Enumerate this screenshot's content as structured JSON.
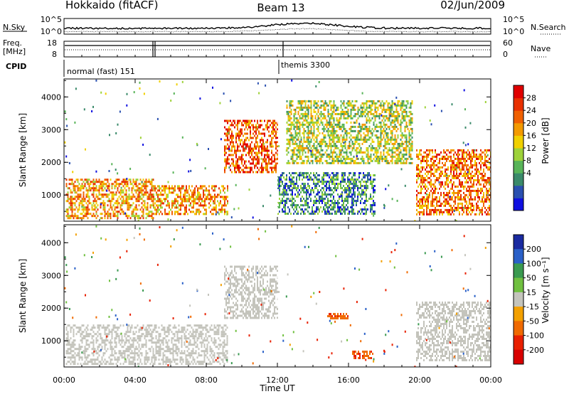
{
  "header": {
    "title_left": "Hokkaido (fitACF)",
    "title_center": "Beam 13",
    "title_right": "02/Jun/2009"
  },
  "noise_panel": {
    "left_label": "N.Sky",
    "right_label": "N.Search",
    "left_ticks": [
      "10^5",
      "10^0"
    ],
    "right_ticks": [
      "10^5",
      "10^0"
    ]
  },
  "freq_panel": {
    "left_label_1": "Freq.",
    "left_label_2": "[MHz]",
    "right_label": "Nave",
    "left_ticks": [
      "18",
      "8"
    ],
    "right_ticks": [
      "60",
      "0"
    ]
  },
  "cpid_panel": {
    "label": "CPID",
    "segments": [
      {
        "text": "normal (fast) 151",
        "start_hour": 0
      },
      {
        "text": "themis 3300",
        "start_hour": 12
      }
    ]
  },
  "time_axis": {
    "label": "Time UT",
    "ticks": [
      "00:00",
      "04:00",
      "08:00",
      "12:00",
      "16:00",
      "20:00",
      "00:00"
    ]
  },
  "power_panel": {
    "ylabel": "Slant Range [km]",
    "yticks": [
      "4000",
      "3000",
      "2000",
      "1000"
    ],
    "colorbar_label": "Power [dB]",
    "colorbar_ticks": [
      "28",
      "24",
      "20",
      "16",
      "12",
      "8",
      "4"
    ],
    "colors": [
      "#1010e0",
      "#2a50b0",
      "#3a8a6a",
      "#58b458",
      "#9ed23a",
      "#f0d000",
      "#f39a00",
      "#f06000",
      "#e83000",
      "#e00000"
    ]
  },
  "velocity_panel": {
    "ylabel": "Slant Range [km]",
    "yticks": [
      "4000",
      "3000",
      "2000",
      "1000"
    ],
    "colorbar_label": "Velocity [m s⁻¹]",
    "colorbar_ticks": [
      "200",
      "100",
      "50",
      "15",
      "-15",
      "-50",
      "-100",
      "-200"
    ],
    "colors": [
      "#1a2aa0",
      "#2a60c8",
      "#3a9a50",
      "#70c040",
      "#c4c4bc",
      "#f3a000",
      "#f06a00",
      "#e82000",
      "#d80000"
    ]
  },
  "chart_data": [
    {
      "type": "heatmap",
      "title": "Hokkaido (fitACF)",
      "xlabel": "Time UT",
      "ylabel": "Slant Range [km]",
      "xlim": [
        0,
        24
      ],
      "ylim": [
        200,
        4550
      ],
      "colorbar": {
        "label": "Power [dB]",
        "range": [
          0,
          30
        ],
        "ticks": [
          4,
          8,
          12,
          16,
          20,
          24,
          28
        ]
      },
      "series": [
        {
          "name": "Power",
          "region": [
            0.1,
            5.0,
            300,
            1500
          ],
          "typical_value": 20
        },
        {
          "name": "Power",
          "region": [
            5.0,
            9.2,
            400,
            1300
          ],
          "typical_value": 20
        },
        {
          "name": "Power",
          "region": [
            9.0,
            12.0,
            1700,
            3300
          ],
          "typical_value": 24
        },
        {
          "name": "Power",
          "region": [
            12.0,
            17.5,
            400,
            1700
          ],
          "typical_value": 8
        },
        {
          "name": "Power",
          "region": [
            12.5,
            19.6,
            2000,
            3900
          ],
          "typical_value": 14
        },
        {
          "name": "Power",
          "region": [
            19.8,
            24.0,
            400,
            2400
          ],
          "typical_value": 22
        }
      ]
    },
    {
      "type": "heatmap",
      "xlabel": "Time UT",
      "ylabel": "Slant Range [km]",
      "xlim": [
        0,
        24
      ],
      "ylim": [
        200,
        4550
      ],
      "colorbar": {
        "label": "Velocity [m s⁻¹]",
        "range": [
          -250,
          250
        ],
        "ticks": [
          200,
          100,
          50,
          15,
          -15,
          -50,
          -100,
          -200
        ]
      },
      "series": [
        {
          "name": "Velocity",
          "region": [
            0.1,
            9.2,
            300,
            1500
          ],
          "typical_value": 0
        },
        {
          "name": "Velocity",
          "region": [
            9.0,
            12.0,
            1700,
            3300
          ],
          "typical_value": 0
        },
        {
          "name": "Velocity",
          "region": [
            14.8,
            16.0,
            1700,
            1850
          ],
          "typical_value": -80
        },
        {
          "name": "Velocity",
          "region": [
            16.2,
            17.4,
            500,
            700
          ],
          "typical_value": -80
        },
        {
          "name": "Velocity",
          "region": [
            19.8,
            24.0,
            400,
            2200
          ],
          "typical_value": 0
        }
      ]
    }
  ]
}
